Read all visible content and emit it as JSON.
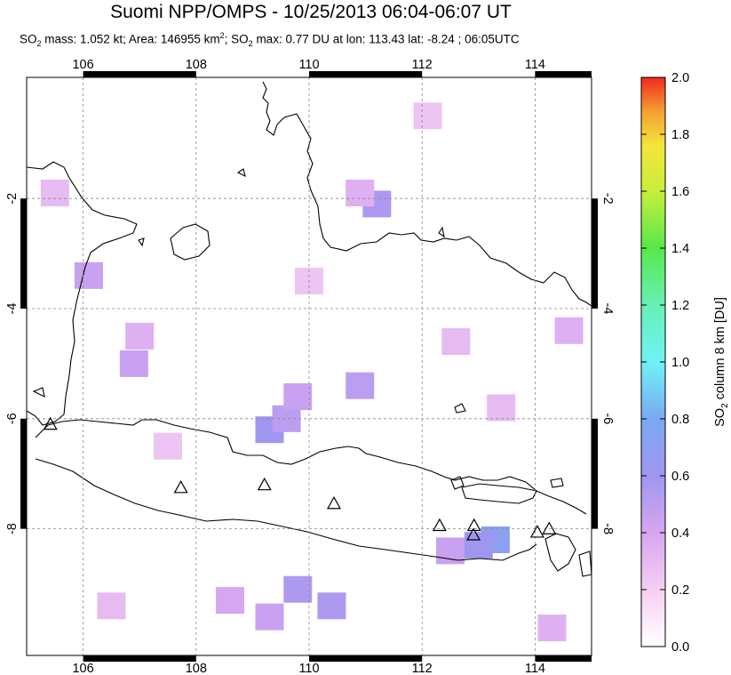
{
  "title": "Suomi NPP/OMPS - 10/25/2013 06:04-06:07 UT",
  "subtitle": {
    "so2_mass_label": "SO",
    "so2_mass_text": " mass: 1.052 kt; Area: 146955 km",
    "so2_max_text": "; SO",
    "so2_max_rest": " max: 0.77 DU at lon: 113.43 lat: -8.24 ; 06:05UTC"
  },
  "map": {
    "lon_ticks": [
      "106",
      "108",
      "110",
      "112",
      "114"
    ],
    "lat_ticks": [
      "-2",
      "-4",
      "-6",
      "-8"
    ],
    "lon_values": [
      106,
      108,
      110,
      112,
      114
    ],
    "lat_values": [
      -2,
      -4,
      -6,
      -8
    ],
    "lon_range": [
      105,
      115
    ],
    "lat_range": [
      -10.3,
      0.2
    ],
    "grid": "dotted",
    "volcanoes": [
      {
        "lon": 105.42,
        "lat": -6.1
      },
      {
        "lon": 107.73,
        "lat": -7.25
      },
      {
        "lon": 109.21,
        "lat": -7.2
      },
      {
        "lon": 110.44,
        "lat": -7.54
      },
      {
        "lon": 112.31,
        "lat": -7.94
      },
      {
        "lon": 112.92,
        "lat": -7.94
      },
      {
        "lon": 112.91,
        "lat": -8.11
      },
      {
        "lon": 114.04,
        "lat": -8.06
      },
      {
        "lon": 114.25,
        "lat": -8.0
      }
    ],
    "so2_pixels": [
      {
        "lon": 106.1,
        "lat": -3.4,
        "du": 0.45
      },
      {
        "lon": 106.9,
        "lat": -5.0,
        "du": 0.45
      },
      {
        "lon": 107.0,
        "lat": -4.5,
        "du": 0.35
      },
      {
        "lon": 109.3,
        "lat": -6.2,
        "du": 0.6
      },
      {
        "lon": 109.6,
        "lat": -6.0,
        "du": 0.5
      },
      {
        "lon": 109.8,
        "lat": -5.6,
        "du": 0.45
      },
      {
        "lon": 110.9,
        "lat": -5.4,
        "du": 0.5
      },
      {
        "lon": 111.2,
        "lat": -2.1,
        "du": 0.55
      },
      {
        "lon": 110.9,
        "lat": -1.9,
        "du": 0.35
      },
      {
        "lon": 113.3,
        "lat": -8.2,
        "du": 0.7
      },
      {
        "lon": 113.0,
        "lat": -8.3,
        "du": 0.6
      },
      {
        "lon": 112.5,
        "lat": -8.4,
        "du": 0.45
      },
      {
        "lon": 109.8,
        "lat": -9.1,
        "du": 0.55
      },
      {
        "lon": 110.4,
        "lat": -9.4,
        "du": 0.55
      },
      {
        "lon": 109.3,
        "lat": -9.6,
        "du": 0.45
      },
      {
        "lon": 108.6,
        "lat": -9.3,
        "du": 0.4
      },
      {
        "lon": 114.6,
        "lat": -4.4,
        "du": 0.35
      },
      {
        "lon": 112.6,
        "lat": -4.6,
        "du": 0.3
      },
      {
        "lon": 105.5,
        "lat": -1.9,
        "du": 0.3
      },
      {
        "lon": 107.5,
        "lat": -6.5,
        "du": 0.25
      },
      {
        "lon": 110.0,
        "lat": -3.5,
        "du": 0.25
      },
      {
        "lon": 113.4,
        "lat": -5.8,
        "du": 0.3
      },
      {
        "lon": 112.1,
        "lat": -0.5,
        "du": 0.25
      },
      {
        "lon": 106.5,
        "lat": -9.4,
        "du": 0.3
      },
      {
        "lon": 114.3,
        "lat": -9.8,
        "du": 0.35
      }
    ]
  },
  "colorbar": {
    "labels": [
      "2.0",
      "1.8",
      "1.6",
      "1.4",
      "1.2",
      "1.0",
      "0.8",
      "0.6",
      "0.4",
      "0.2",
      "0.0"
    ],
    "title_prefix": "SO",
    "title_sub": "2",
    "title_rest": " column 8 km [DU]",
    "range": [
      0.0,
      2.0
    ]
  }
}
